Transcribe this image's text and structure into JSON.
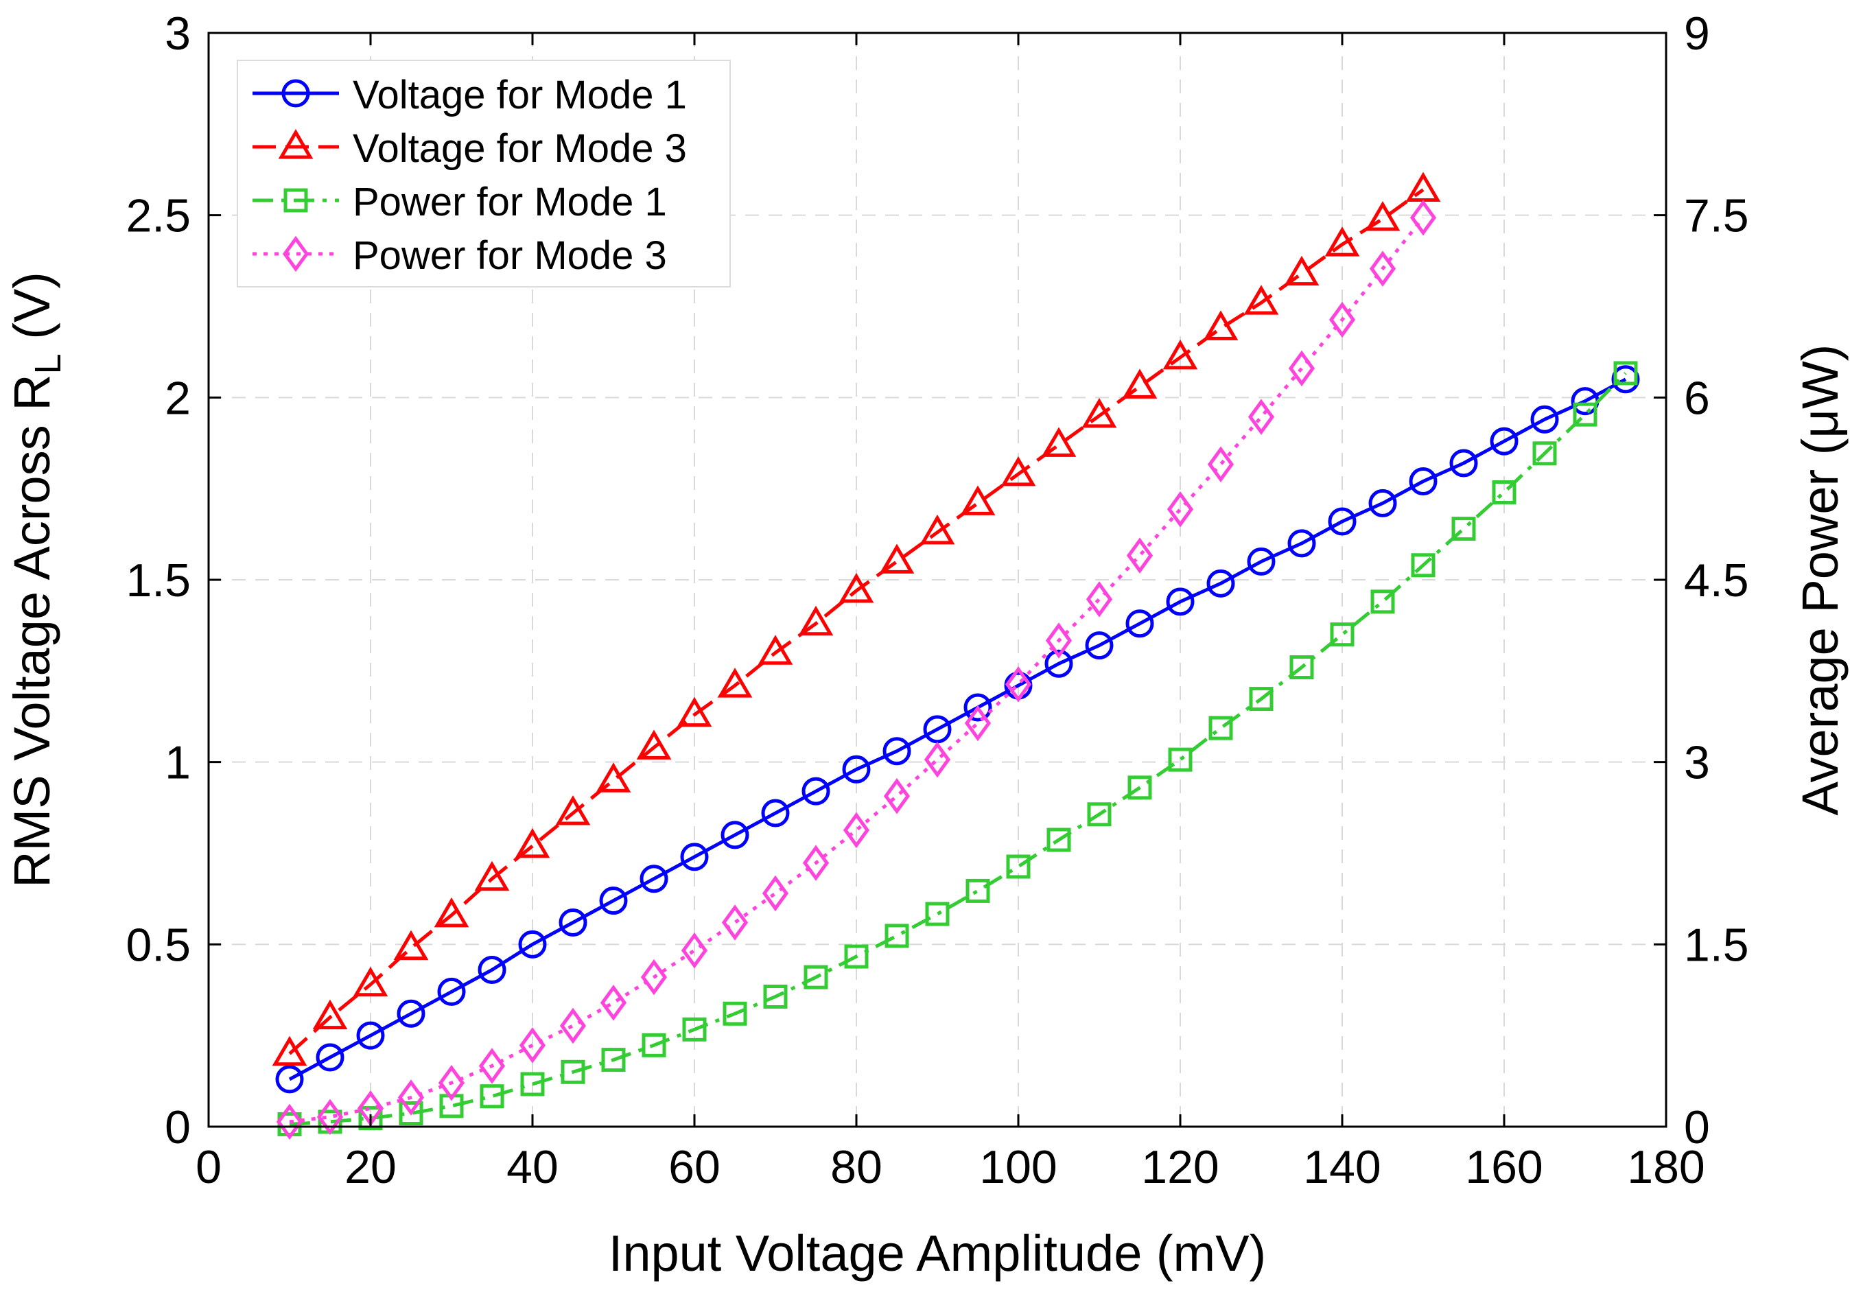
{
  "chart_data": {
    "type": "line",
    "title": "",
    "xlabel": "Input Voltage Amplitude (mV)",
    "ylabel": "RMS Voltage Across R",
    "ylabel_subscript": "L",
    "ylabel_unit": "(V)",
    "y2label": "Average Power (μW)",
    "xlim": [
      0,
      180
    ],
    "ylim": [
      0,
      3
    ],
    "y2lim": [
      0,
      9
    ],
    "xticks": [
      "0",
      "20",
      "40",
      "60",
      "80",
      "100",
      "120",
      "140",
      "160",
      "180"
    ],
    "yticks": [
      "0",
      "0.5",
      "1",
      "1.5",
      "2",
      "2.5",
      "3"
    ],
    "y2ticks": [
      "0",
      "1.5",
      "3",
      "4.5",
      "6",
      "7.5",
      "9"
    ],
    "grid": true,
    "legend_position": "top-left",
    "series": [
      {
        "name": "Voltage for Mode 1",
        "axis": "left",
        "color": "#0000ff",
        "marker": "circle",
        "line": "solid",
        "x": [
          10,
          15,
          20,
          25,
          30,
          35,
          40,
          45,
          50,
          55,
          60,
          65,
          70,
          75,
          80,
          85,
          90,
          95,
          100,
          105,
          110,
          115,
          120,
          125,
          130,
          135,
          140,
          145,
          150,
          155,
          160,
          165,
          170,
          175
        ],
        "values": [
          0.13,
          0.19,
          0.25,
          0.31,
          0.37,
          0.43,
          0.5,
          0.56,
          0.62,
          0.68,
          0.74,
          0.8,
          0.86,
          0.92,
          0.98,
          1.03,
          1.09,
          1.15,
          1.21,
          1.27,
          1.32,
          1.38,
          1.44,
          1.49,
          1.55,
          1.6,
          1.66,
          1.71,
          1.77,
          1.82,
          1.88,
          1.94,
          1.99,
          2.05
        ]
      },
      {
        "name": "Voltage for Mode 3",
        "axis": "left",
        "color": "#ff0000",
        "marker": "triangle",
        "line": "dashed",
        "x": [
          10,
          15,
          20,
          25,
          30,
          35,
          40,
          45,
          50,
          55,
          60,
          65,
          70,
          75,
          80,
          85,
          90,
          95,
          100,
          105,
          110,
          115,
          120,
          125,
          130,
          135,
          140,
          145,
          150
        ],
        "values": [
          0.2,
          0.3,
          0.39,
          0.49,
          0.58,
          0.68,
          0.77,
          0.86,
          0.95,
          1.04,
          1.13,
          1.21,
          1.3,
          1.38,
          1.47,
          1.55,
          1.63,
          1.71,
          1.79,
          1.87,
          1.95,
          2.03,
          2.11,
          2.19,
          2.26,
          2.34,
          2.42,
          2.49,
          2.57
        ]
      },
      {
        "name": "Power for Mode 1",
        "axis": "right",
        "color": "#33cc33",
        "marker": "square",
        "line": "dashdot",
        "x": [
          10,
          15,
          20,
          25,
          30,
          35,
          40,
          45,
          50,
          55,
          60,
          65,
          70,
          75,
          80,
          85,
          90,
          95,
          100,
          105,
          110,
          115,
          120,
          125,
          130,
          135,
          140,
          145,
          150,
          155,
          160,
          165,
          170,
          175
        ],
        "values": [
          0.02,
          0.04,
          0.07,
          0.11,
          0.17,
          0.25,
          0.35,
          0.45,
          0.55,
          0.67,
          0.8,
          0.93,
          1.07,
          1.23,
          1.4,
          1.57,
          1.75,
          1.94,
          2.14,
          2.36,
          2.57,
          2.79,
          3.02,
          3.28,
          3.52,
          3.78,
          4.05,
          4.32,
          4.62,
          4.92,
          5.22,
          5.54,
          5.86,
          6.2
        ]
      },
      {
        "name": "Power for Mode 3",
        "axis": "right",
        "color": "#ff44dd",
        "marker": "diamond",
        "line": "dotted",
        "x": [
          10,
          15,
          20,
          25,
          30,
          35,
          40,
          45,
          50,
          55,
          60,
          65,
          70,
          75,
          80,
          85,
          90,
          95,
          100,
          105,
          110,
          115,
          120,
          125,
          130,
          135,
          140,
          145,
          150
        ],
        "values": [
          0.04,
          0.08,
          0.15,
          0.24,
          0.36,
          0.5,
          0.67,
          0.83,
          1.02,
          1.23,
          1.45,
          1.68,
          1.92,
          2.17,
          2.44,
          2.72,
          3.02,
          3.32,
          3.64,
          4.0,
          4.34,
          4.7,
          5.08,
          5.45,
          5.84,
          6.24,
          6.64,
          7.06,
          7.48
        ]
      }
    ]
  }
}
